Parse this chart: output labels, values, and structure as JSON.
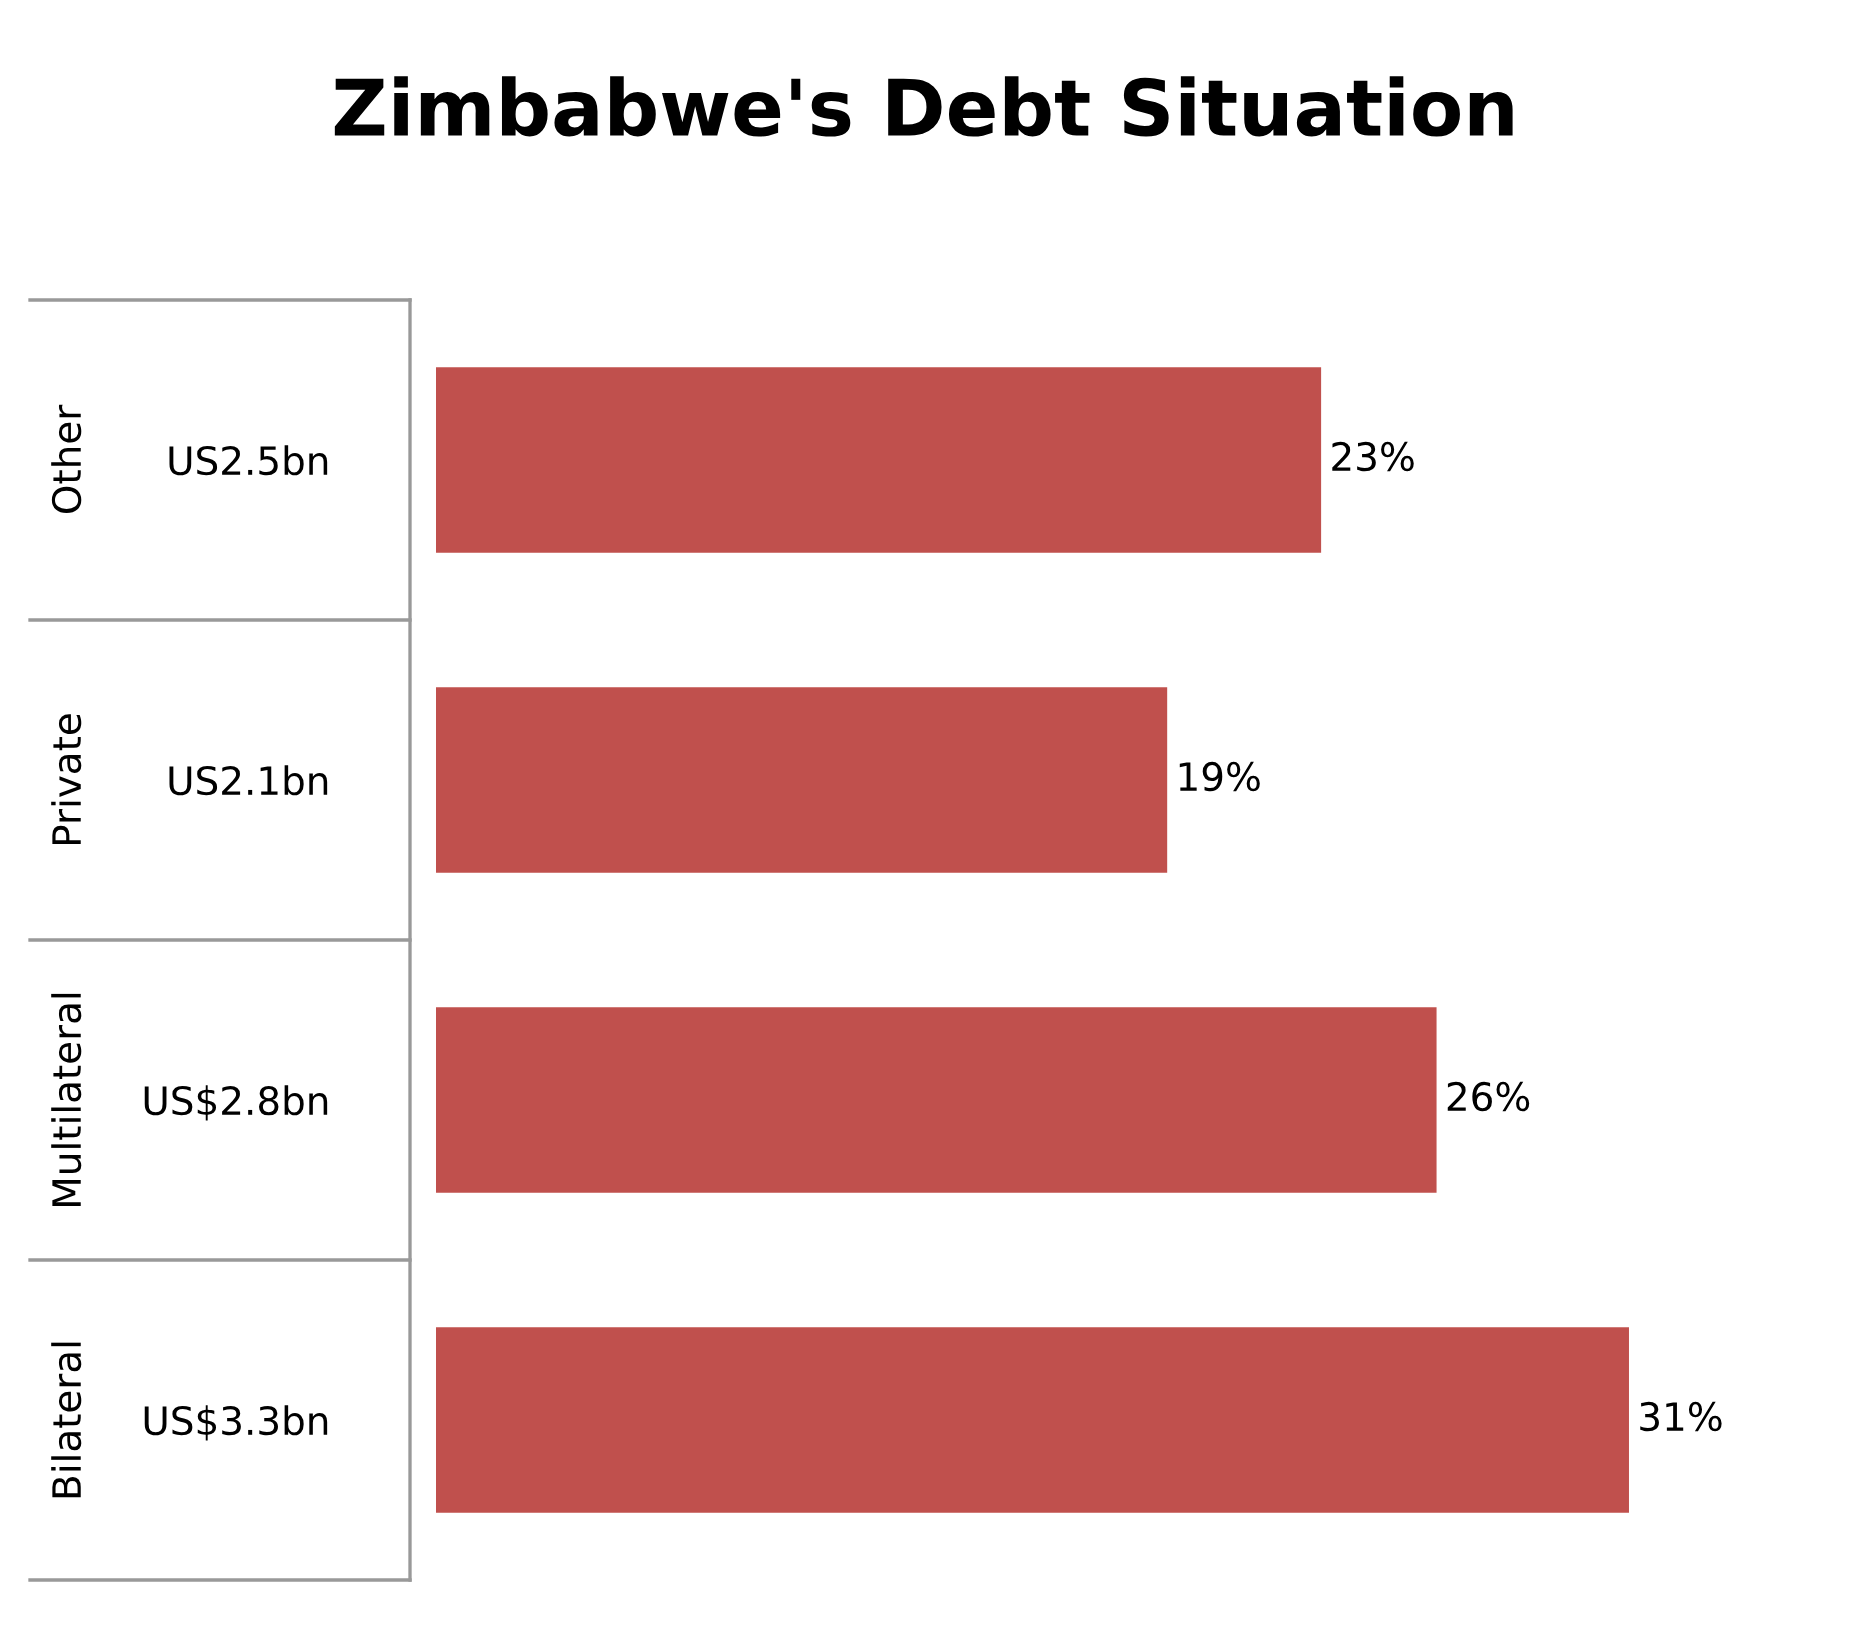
{
  "chart_data": {
    "type": "bar",
    "orientation": "horizontal",
    "title": "Zimbabwe's Debt Situation",
    "categories": [
      "US2.5bn",
      "US2.1bn",
      "US$2.8bn",
      "US$3.3bn"
    ],
    "annotations": [
      "Other",
      "Private",
      "Multilateral",
      "Bilateral"
    ],
    "values": [
      23,
      19,
      26,
      31
    ],
    "value_labels": [
      "23%",
      "19%",
      "26%",
      "31%"
    ],
    "color": "#c0504d"
  }
}
